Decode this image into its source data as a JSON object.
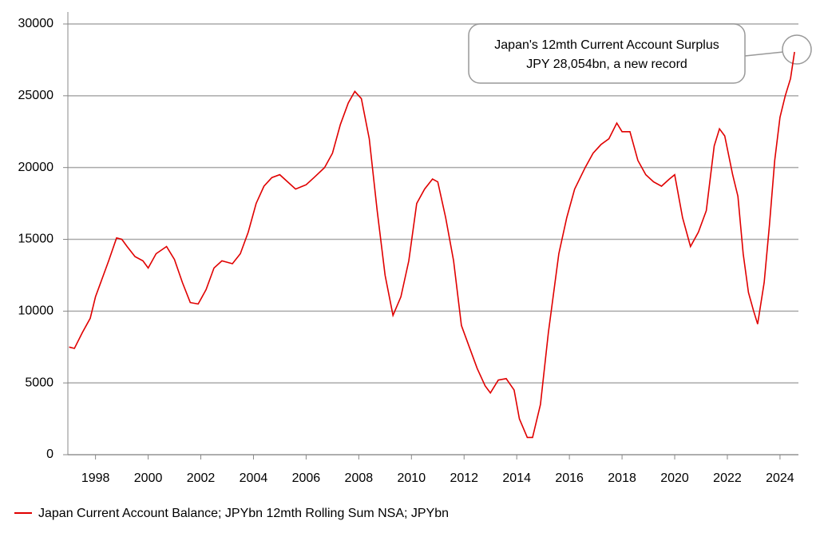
{
  "chart_data": {
    "type": "line",
    "annotation": [
      "Japan's 12mth Current Account Surplus",
      "JPY 28,054bn, a new record"
    ],
    "x": [
      1997.0,
      1997.2,
      1997.5,
      1997.8,
      1998.0,
      1998.3,
      1998.5,
      1998.8,
      1999.0,
      1999.2,
      1999.5,
      1999.8,
      2000.0,
      2000.3,
      2000.7,
      2001.0,
      2001.3,
      2001.6,
      2001.9,
      2002.2,
      2002.5,
      2002.8,
      2003.2,
      2003.5,
      2003.8,
      2004.1,
      2004.4,
      2004.7,
      2005.0,
      2005.3,
      2005.6,
      2006.0,
      2006.3,
      2006.7,
      2007.0,
      2007.3,
      2007.6,
      2007.85,
      2008.1,
      2008.4,
      2008.7,
      2009.0,
      2009.3,
      2009.6,
      2009.9,
      2010.2,
      2010.5,
      2010.8,
      2011.0,
      2011.3,
      2011.6,
      2011.9,
      2012.2,
      2012.5,
      2012.8,
      2013.0,
      2013.3,
      2013.6,
      2013.9,
      2014.1,
      2014.4,
      2014.6,
      2014.9,
      2015.2,
      2015.6,
      2015.9,
      2016.2,
      2016.6,
      2016.9,
      2017.2,
      2017.5,
      2017.8,
      2018.0,
      2018.3,
      2018.6,
      2018.9,
      2019.2,
      2019.5,
      2019.8,
      2020.0,
      2020.3,
      2020.6,
      2020.9,
      2021.2,
      2021.5,
      2021.7,
      2021.9,
      2022.2,
      2022.4,
      2022.6,
      2022.8,
      2023.0,
      2023.15,
      2023.4,
      2023.6,
      2023.8,
      2024.0,
      2024.2,
      2024.4,
      2024.55
    ],
    "series": [
      {
        "name": "Japan Current Account Balance; JPYbn 12mth Rolling Sum NSA; JPYbn",
        "color": "#e00000",
        "values": [
          7500,
          7400,
          8500,
          9500,
          11000,
          12500,
          13500,
          15100,
          15000,
          14500,
          13800,
          13500,
          13000,
          14000,
          14500,
          13600,
          12000,
          10600,
          10500,
          11500,
          13000,
          13500,
          13300,
          14000,
          15500,
          17500,
          18700,
          19300,
          19500,
          19000,
          18500,
          18800,
          19300,
          20000,
          21000,
          23000,
          24500,
          25300,
          24800,
          22000,
          17000,
          12500,
          9700,
          11000,
          13500,
          17500,
          18500,
          19200,
          19000,
          16500,
          13500,
          9000,
          7500,
          6000,
          4800,
          4300,
          5200,
          5300,
          4500,
          2500,
          1200,
          1200,
          3500,
          8500,
          14000,
          16500,
          18500,
          20000,
          21000,
          21600,
          22000,
          23100,
          22500,
          22500,
          20500,
          19500,
          19000,
          18700,
          19200,
          19500,
          16500,
          14500,
          15500,
          17000,
          21500,
          22700,
          22200,
          19500,
          18000,
          14000,
          11300,
          10000,
          9100,
          12000,
          16000,
          20500,
          23500,
          25000,
          26200,
          28054
        ]
      }
    ],
    "xlim": [
      1996.95,
      2024.7
    ],
    "xticks": [
      1998,
      2000,
      2002,
      2004,
      2006,
      2008,
      2010,
      2012,
      2014,
      2016,
      2018,
      2020,
      2022,
      2024
    ],
    "ylim": [
      0,
      30000
    ],
    "yticks": [
      0,
      5000,
      10000,
      15000,
      20000,
      25000,
      30000
    ],
    "grid": true
  }
}
